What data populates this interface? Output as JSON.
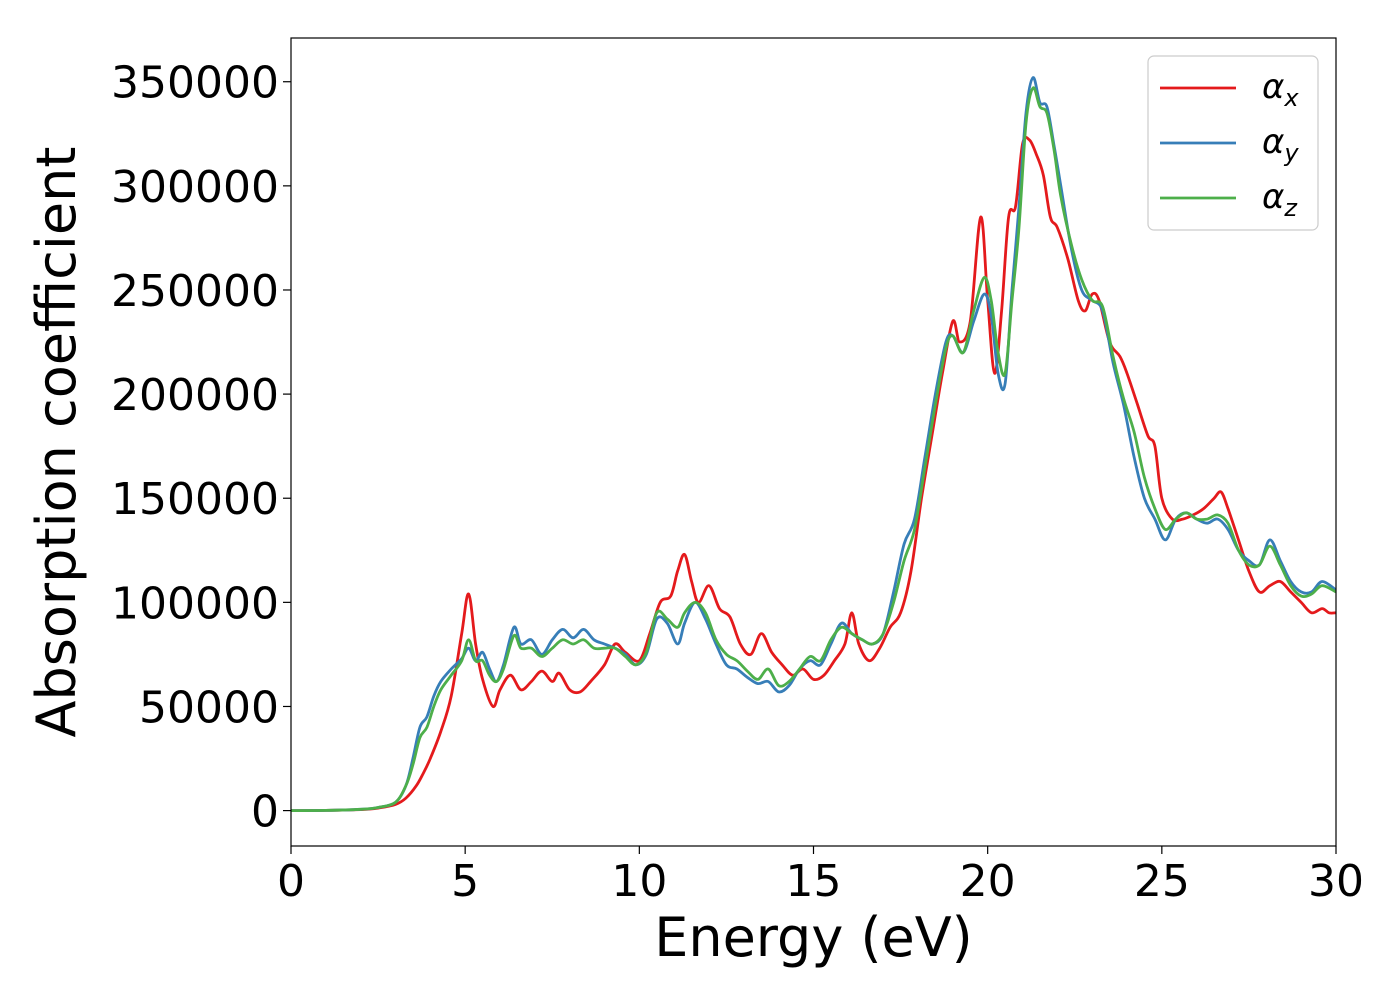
{
  "chart_data": {
    "type": "line",
    "title": "",
    "xlabel": "Energy (eV)",
    "ylabel": "Absorption coefficient",
    "xlim": [
      0,
      30
    ],
    "ylim": [
      -17000,
      371000
    ],
    "xticks": [
      0,
      5,
      10,
      15,
      20,
      25,
      30
    ],
    "xtick_labels": [
      "0",
      "5",
      "10",
      "15",
      "20",
      "25",
      "30"
    ],
    "yticks": [
      0,
      50000,
      100000,
      150000,
      200000,
      250000,
      300000,
      350000
    ],
    "ytick_labels": [
      "0",
      "50000",
      "100000",
      "150000",
      "200000",
      "250000",
      "300000",
      "350000"
    ],
    "grid": false,
    "legend_position": "top-right",
    "series": [
      {
        "name": "α",
        "subscript": "x",
        "color": "#e41a1c",
        "x": [
          0,
          1,
          2,
          2.5,
          3,
          3.3,
          3.6,
          3.8,
          4,
          4.3,
          4.6,
          4.9,
          5.1,
          5.3,
          5.5,
          5.8,
          6.0,
          6.3,
          6.6,
          6.9,
          7.2,
          7.5,
          7.7,
          8.0,
          8.3,
          8.6,
          9.0,
          9.3,
          9.6,
          10.0,
          10.3,
          10.6,
          10.9,
          11.1,
          11.3,
          11.5,
          11.7,
          12.0,
          12.3,
          12.6,
          12.9,
          13.2,
          13.5,
          13.8,
          14.1,
          14.4,
          14.7,
          15.0,
          15.3,
          15.6,
          15.9,
          16.1,
          16.3,
          16.6,
          16.9,
          17.2,
          17.5,
          17.8,
          18.1,
          18.4,
          18.7,
          19.0,
          19.2,
          19.5,
          19.8,
          20.0,
          20.2,
          20.4,
          20.6,
          20.8,
          21.0,
          21.2,
          21.4,
          21.6,
          21.8,
          22.0,
          22.3,
          22.6,
          22.8,
          23.0,
          23.2,
          23.5,
          23.8,
          24.0,
          24.3,
          24.6,
          24.8,
          25.0,
          25.3,
          25.6,
          25.9,
          26.2,
          26.5,
          26.7,
          26.9,
          27.2,
          27.5,
          27.8,
          28.1,
          28.4,
          28.7,
          29.0,
          29.3,
          29.6,
          29.8,
          30.0
        ],
        "y": [
          0,
          100,
          500,
          1200,
          3000,
          6000,
          12000,
          18000,
          25000,
          38000,
          55000,
          85000,
          104000,
          80000,
          63000,
          50000,
          58000,
          65000,
          58000,
          62000,
          67000,
          62000,
          66000,
          58000,
          57000,
          62000,
          70000,
          80000,
          76000,
          72000,
          85000,
          100000,
          103000,
          115000,
          123000,
          110000,
          100000,
          108000,
          97000,
          93000,
          80000,
          75000,
          85000,
          76000,
          70000,
          65000,
          68000,
          63000,
          65000,
          72000,
          80000,
          95000,
          80000,
          72000,
          78000,
          88000,
          95000,
          115000,
          150000,
          180000,
          210000,
          235000,
          225000,
          235000,
          285000,
          245000,
          210000,
          240000,
          285000,
          290000,
          320000,
          322000,
          315000,
          305000,
          285000,
          280000,
          265000,
          245000,
          240000,
          248000,
          245000,
          225000,
          218000,
          210000,
          195000,
          180000,
          175000,
          150000,
          140000,
          140000,
          142000,
          145000,
          150000,
          153000,
          145000,
          130000,
          115000,
          105000,
          108000,
          110000,
          105000,
          100000,
          95000,
          97000,
          95000,
          95000
        ]
      },
      {
        "name": "α",
        "subscript": "y",
        "color": "#377eb8",
        "x": [
          0,
          1,
          2,
          2.5,
          3,
          3.3,
          3.5,
          3.7,
          3.9,
          4.1,
          4.3,
          4.6,
          4.9,
          5.1,
          5.3,
          5.5,
          5.7,
          5.9,
          6.1,
          6.4,
          6.6,
          6.9,
          7.2,
          7.5,
          7.8,
          8.1,
          8.4,
          8.7,
          9.0,
          9.3,
          9.6,
          9.9,
          10.2,
          10.5,
          10.8,
          11.1,
          11.3,
          11.6,
          11.9,
          12.2,
          12.5,
          12.8,
          13.1,
          13.4,
          13.7,
          14.0,
          14.3,
          14.6,
          14.9,
          15.2,
          15.5,
          15.8,
          16.1,
          16.4,
          16.7,
          17.0,
          17.3,
          17.6,
          17.9,
          18.2,
          18.5,
          18.8,
          19.0,
          19.3,
          19.6,
          19.9,
          20.1,
          20.3,
          20.5,
          20.7,
          20.9,
          21.1,
          21.3,
          21.5,
          21.7,
          21.9,
          22.1,
          22.4,
          22.7,
          23.0,
          23.3,
          23.6,
          23.9,
          24.2,
          24.5,
          24.8,
          25.1,
          25.4,
          25.7,
          26.0,
          26.3,
          26.6,
          26.9,
          27.2,
          27.5,
          27.8,
          28.1,
          28.4,
          28.7,
          29.0,
          29.3,
          29.6,
          30.0
        ],
        "y": [
          0,
          100,
          600,
          1500,
          4000,
          12000,
          25000,
          40000,
          45000,
          55000,
          62000,
          68000,
          73000,
          78000,
          72000,
          76000,
          68000,
          62000,
          70000,
          88000,
          80000,
          82000,
          75000,
          82000,
          87000,
          83000,
          87000,
          82000,
          80000,
          78000,
          75000,
          70000,
          75000,
          92000,
          90000,
          80000,
          90000,
          100000,
          92000,
          80000,
          70000,
          68000,
          64000,
          61000,
          62000,
          57000,
          60000,
          68000,
          72000,
          70000,
          80000,
          90000,
          85000,
          82000,
          80000,
          85000,
          105000,
          128000,
          140000,
          170000,
          200000,
          225000,
          228000,
          220000,
          235000,
          248000,
          238000,
          210000,
          205000,
          250000,
          290000,
          335000,
          352000,
          340000,
          338000,
          320000,
          300000,
          270000,
          250000,
          245000,
          240000,
          215000,
          195000,
          170000,
          150000,
          140000,
          130000,
          140000,
          143000,
          140000,
          138000,
          140000,
          135000,
          125000,
          120000,
          118000,
          130000,
          120000,
          110000,
          105000,
          105000,
          110000,
          106000
        ]
      },
      {
        "name": "α",
        "subscript": "z",
        "color": "#4daf4a",
        "x": [
          0,
          1,
          2,
          2.5,
          3,
          3.3,
          3.5,
          3.7,
          3.9,
          4.1,
          4.3,
          4.6,
          4.9,
          5.1,
          5.3,
          5.5,
          5.7,
          5.9,
          6.1,
          6.4,
          6.6,
          6.9,
          7.2,
          7.5,
          7.8,
          8.1,
          8.4,
          8.7,
          9.0,
          9.3,
          9.6,
          9.9,
          10.2,
          10.5,
          10.8,
          11.1,
          11.3,
          11.6,
          11.9,
          12.2,
          12.5,
          12.8,
          13.1,
          13.4,
          13.7,
          14.0,
          14.3,
          14.6,
          14.9,
          15.2,
          15.5,
          15.8,
          16.1,
          16.4,
          16.7,
          17.0,
          17.3,
          17.6,
          17.9,
          18.2,
          18.5,
          18.8,
          19.0,
          19.3,
          19.6,
          19.9,
          20.1,
          20.3,
          20.5,
          20.7,
          20.9,
          21.1,
          21.3,
          21.5,
          21.7,
          21.9,
          22.1,
          22.4,
          22.7,
          23.0,
          23.3,
          23.6,
          23.9,
          24.2,
          24.5,
          24.8,
          25.1,
          25.4,
          25.7,
          26.0,
          26.3,
          26.6,
          26.9,
          27.2,
          27.5,
          27.8,
          28.1,
          28.4,
          28.7,
          29.0,
          29.3,
          29.6,
          30.0
        ],
        "y": [
          0,
          100,
          600,
          1500,
          4000,
          12000,
          22000,
          35000,
          40000,
          50000,
          58000,
          65000,
          72000,
          82000,
          72000,
          72000,
          65000,
          62000,
          68000,
          84000,
          78000,
          78000,
          74000,
          78000,
          82000,
          80000,
          82000,
          78000,
          78000,
          78000,
          74000,
          70000,
          76000,
          95000,
          92000,
          88000,
          95000,
          100000,
          95000,
          82000,
          75000,
          72000,
          67000,
          63000,
          68000,
          60000,
          62000,
          68000,
          74000,
          72000,
          82000,
          88000,
          85000,
          82000,
          80000,
          85000,
          100000,
          120000,
          135000,
          165000,
          195000,
          222000,
          228000,
          220000,
          240000,
          256000,
          245000,
          220000,
          210000,
          245000,
          280000,
          330000,
          347000,
          338000,
          335000,
          318000,
          295000,
          272000,
          255000,
          245000,
          242000,
          218000,
          198000,
          182000,
          160000,
          145000,
          135000,
          140000,
          143000,
          140000,
          140000,
          142000,
          138000,
          125000,
          118000,
          118000,
          127000,
          118000,
          108000,
          103000,
          104000,
          108000,
          105000
        ]
      }
    ]
  }
}
